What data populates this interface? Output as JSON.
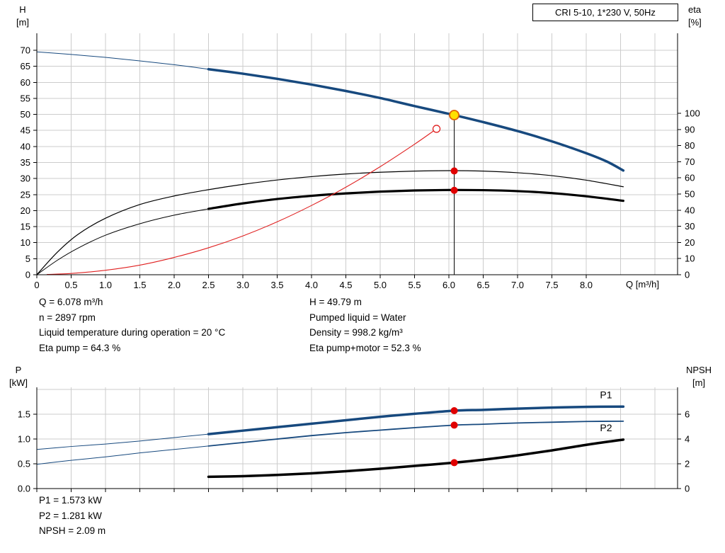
{
  "colors": {
    "grid": "#cccccc",
    "axis": "#000000",
    "curve_blue": "#17497E",
    "curve_black": "#000000",
    "curve_red": "#E02020",
    "marker_red": "#E00000",
    "duty_fill": "#FFE000",
    "duty_stroke": "#E06000"
  },
  "info": {
    "top_left": [
      "Q = 6.078 m³/h",
      "n = 2897 rpm",
      "Liquid temperature during operation = 20 °C",
      "Eta pump = 64.3 %"
    ],
    "top_right": [
      "H = 49.79 m",
      "Pumped liquid = Water",
      "Density = 998.2 kg/m³",
      "Eta pump+motor = 52.3 %"
    ],
    "bottom": [
      "P1 = 1.573 kW",
      "P2 = 1.281 kW",
      "NPSH = 2.09 m"
    ]
  },
  "chart_data": [
    {
      "type": "line",
      "title": "CRI 5-10, 1*230 V, 50Hz",
      "x_axis": {
        "label": "Q [m³/h]",
        "min": 0,
        "max": 9.33,
        "grid_step": 0.5,
        "grid_max": 9.0,
        "tick_values": [
          0,
          0.5,
          1,
          1.5,
          2,
          2.5,
          3,
          3.5,
          4,
          4.5,
          5,
          5.5,
          6,
          6.5,
          7,
          7.5,
          8
        ],
        "tick_labels": [
          "0",
          "0.5",
          "1.0",
          "1.5",
          "2.0",
          "2.5",
          "3.0",
          "3.5",
          "4.0",
          "4.5",
          "5.0",
          "5.5",
          "6.0",
          "6.5",
          "7.0",
          "7.5",
          "8.0"
        ]
      },
      "y_left": {
        "label": "H",
        "unit": "[m]",
        "min": 0,
        "max": 75.3,
        "grid_step": 5,
        "grid_max": 70,
        "tick_values": [
          0,
          5,
          10,
          15,
          20,
          25,
          30,
          35,
          40,
          45,
          50,
          55,
          60,
          65,
          70
        ],
        "tick_labels": [
          "0",
          "5",
          "10",
          "15",
          "20",
          "25",
          "30",
          "35",
          "40",
          "45",
          "50",
          "55",
          "60",
          "65",
          "70"
        ]
      },
      "y_right": {
        "label": "eta",
        "unit": "[%]",
        "min": 0,
        "max": 149.6,
        "tick_values": [
          0,
          10,
          20,
          30,
          40,
          50,
          60,
          70,
          80,
          90,
          100
        ],
        "tick_labels": [
          "0",
          "10",
          "20",
          "30",
          "40",
          "50",
          "60",
          "70",
          "80",
          "90",
          "100"
        ]
      },
      "vline": {
        "x": 6.078,
        "from": 0,
        "to": 48.2,
        "axis": "left"
      },
      "series": [
        {
          "name": "head-curve-thin",
          "axis": "left",
          "color": "#17497E",
          "width": 1,
          "points": [
            [
              0,
              69.5
            ],
            [
              0.5,
              68.7
            ],
            [
              1,
              67.8
            ],
            [
              1.5,
              66.7
            ],
            [
              2,
              65.5
            ],
            [
              2.5,
              64.1
            ]
          ]
        },
        {
          "name": "head-curve",
          "axis": "left",
          "color": "#17497E",
          "width": 3.5,
          "points": [
            [
              2.5,
              64.1
            ],
            [
              3,
              62.7
            ],
            [
              3.5,
              61.1
            ],
            [
              4,
              59.3
            ],
            [
              4.5,
              57.3
            ],
            [
              5,
              55.1
            ],
            [
              5.5,
              52.6
            ],
            [
              6.078,
              49.79
            ],
            [
              6.5,
              47.6
            ],
            [
              7,
              44.8
            ],
            [
              7.5,
              41.6
            ],
            [
              8,
              37.9
            ],
            [
              8.3,
              35.3
            ],
            [
              8.54,
              32.5
            ]
          ]
        },
        {
          "name": "eta-pump-curve",
          "axis": "right",
          "color": "#000000",
          "width": 1.2,
          "points": [
            [
              0,
              0
            ],
            [
              0.3,
              14
            ],
            [
              0.6,
              25
            ],
            [
              1,
              35
            ],
            [
              1.5,
              43.5
            ],
            [
              2,
              48.8
            ],
            [
              2.5,
              52.7
            ],
            [
              3,
              56
            ],
            [
              3.5,
              58.7
            ],
            [
              4,
              60.8
            ],
            [
              4.5,
              62.4
            ],
            [
              5,
              63.5
            ],
            [
              5.5,
              64.2
            ],
            [
              6,
              64.5
            ],
            [
              6.5,
              64.2
            ],
            [
              7,
              63.2
            ],
            [
              7.5,
              61.4
            ],
            [
              8,
              58.6
            ],
            [
              8.54,
              54.5
            ]
          ]
        },
        {
          "name": "eta-pump-motor-curve-thin",
          "axis": "right",
          "color": "#000000",
          "width": 1,
          "points": [
            [
              0,
              0
            ],
            [
              0.3,
              9
            ],
            [
              0.6,
              16.5
            ],
            [
              1,
              24.5
            ],
            [
              1.5,
              31.6
            ],
            [
              2,
              36.9
            ],
            [
              2.5,
              40.8
            ]
          ]
        },
        {
          "name": "eta-pump-motor-curve",
          "axis": "right",
          "color": "#000000",
          "width": 3.2,
          "points": [
            [
              2.5,
              40.8
            ],
            [
              3,
              44.2
            ],
            [
              3.5,
              46.9
            ],
            [
              4,
              48.9
            ],
            [
              4.5,
              50.4
            ],
            [
              5,
              51.5
            ],
            [
              5.5,
              52.2
            ],
            [
              6,
              52.5
            ],
            [
              6.5,
              52.4
            ],
            [
              7,
              51.8
            ],
            [
              7.5,
              50.6
            ],
            [
              8,
              48.6
            ],
            [
              8.54,
              45.8
            ]
          ]
        },
        {
          "name": "system-curve",
          "axis": "left",
          "color": "#E02020",
          "width": 1.1,
          "points": [
            [
              0.15,
              0.1
            ],
            [
              0.5,
              0.4
            ],
            [
              1,
              1.4
            ],
            [
              1.5,
              3
            ],
            [
              2,
              5.4
            ],
            [
              2.5,
              8.4
            ],
            [
              3,
              12.1
            ],
            [
              3.5,
              16.5
            ],
            [
              4,
              21.6
            ],
            [
              4.5,
              27.3
            ],
            [
              5,
              33.7
            ],
            [
              5.5,
              40.7
            ],
            [
              5.82,
              45.5
            ]
          ]
        }
      ],
      "markers": [
        {
          "name": "rated-point-marker",
          "x": 5.82,
          "y": 45.5,
          "axis": "left",
          "r": 5,
          "fill": "#FFFFFF",
          "stroke": "#E02020",
          "stroke_width": 1.3
        },
        {
          "name": "duty-point-marker",
          "x": 6.078,
          "y": 49.79,
          "axis": "left",
          "r": 6.5,
          "fill": "#FFE000",
          "stroke": "#E06000",
          "stroke_width": 1.8
        },
        {
          "name": "eta-pump-point",
          "x": 6.078,
          "y": 64.3,
          "axis": "right",
          "r": 5,
          "fill": "#E00000"
        },
        {
          "name": "eta-pump-motor-point",
          "x": 6.078,
          "y": 52.3,
          "axis": "right",
          "r": 5,
          "fill": "#E00000"
        }
      ],
      "series_labels": []
    },
    {
      "type": "line",
      "title": "",
      "x_axis": {
        "label": "",
        "min": 0,
        "max": 9.33,
        "grid_step": 0.5,
        "grid_max": 9.0,
        "tick_values": [
          0,
          0.5,
          1,
          1.5,
          2,
          2.5,
          3,
          3.5,
          4,
          4.5,
          5,
          5.5,
          6,
          6.5,
          7,
          7.5,
          8
        ],
        "tick_labels": []
      },
      "y_left": {
        "label": "P",
        "unit": "[kW]",
        "min": 0,
        "max": 2.045,
        "grid_step": 0.5,
        "grid_max": 2.0,
        "tick_values": [
          0,
          0.5,
          1,
          1.5
        ],
        "tick_labels": [
          "0.0",
          "0.5",
          "1.0",
          "1.5"
        ]
      },
      "y_right": {
        "label": "NPSH",
        "unit": "[m]",
        "min": 0,
        "max": 8.17,
        "tick_values": [
          0,
          2,
          4,
          6
        ],
        "tick_labels": [
          "0",
          "2",
          "4",
          "6"
        ]
      },
      "series": [
        {
          "name": "p1-curve-thin",
          "axis": "left",
          "color": "#17497E",
          "width": 1,
          "points": [
            [
              0,
              0.79
            ],
            [
              0.5,
              0.85
            ],
            [
              1,
              0.9
            ],
            [
              1.5,
              0.96
            ],
            [
              2,
              1.03
            ],
            [
              2.5,
              1.1
            ]
          ]
        },
        {
          "name": "p1-curve",
          "axis": "left",
          "color": "#17497E",
          "width": 3.5,
          "points": [
            [
              2.5,
              1.1
            ],
            [
              3,
              1.17
            ],
            [
              3.5,
              1.24
            ],
            [
              4,
              1.31
            ],
            [
              4.5,
              1.38
            ],
            [
              5,
              1.45
            ],
            [
              5.5,
              1.51
            ],
            [
              6.078,
              1.573
            ],
            [
              6.5,
              1.59
            ],
            [
              7,
              1.615
            ],
            [
              7.5,
              1.635
            ],
            [
              8,
              1.65
            ],
            [
              8.54,
              1.655
            ]
          ]
        },
        {
          "name": "p2-curve-thin",
          "axis": "left",
          "color": "#17497E",
          "width": 1,
          "points": [
            [
              0,
              0.49
            ],
            [
              0.5,
              0.57
            ],
            [
              1,
              0.64
            ],
            [
              1.5,
              0.72
            ],
            [
              2,
              0.79
            ],
            [
              2.5,
              0.86
            ]
          ]
        },
        {
          "name": "p2-curve",
          "axis": "left",
          "color": "#17497E",
          "width": 1.8,
          "points": [
            [
              2.5,
              0.86
            ],
            [
              3,
              0.93
            ],
            [
              3.5,
              1.0
            ],
            [
              4,
              1.07
            ],
            [
              4.5,
              1.13
            ],
            [
              5,
              1.18
            ],
            [
              5.5,
              1.23
            ],
            [
              6.078,
              1.281
            ],
            [
              6.5,
              1.3
            ],
            [
              7,
              1.325
            ],
            [
              7.5,
              1.34
            ],
            [
              8,
              1.355
            ],
            [
              8.54,
              1.36
            ]
          ]
        },
        {
          "name": "npsh-curve",
          "axis": "right",
          "color": "#000000",
          "width": 3.5,
          "points": [
            [
              2.5,
              0.95
            ],
            [
              3,
              1.0
            ],
            [
              3.5,
              1.1
            ],
            [
              4,
              1.23
            ],
            [
              4.5,
              1.4
            ],
            [
              5,
              1.6
            ],
            [
              5.5,
              1.83
            ],
            [
              6.078,
              2.09
            ],
            [
              6.5,
              2.33
            ],
            [
              7,
              2.68
            ],
            [
              7.5,
              3.08
            ],
            [
              8,
              3.53
            ],
            [
              8.54,
              3.95
            ]
          ]
        }
      ],
      "markers": [
        {
          "name": "p1-point",
          "x": 6.078,
          "y": 1.573,
          "axis": "left",
          "r": 5,
          "fill": "#E00000"
        },
        {
          "name": "p2-point",
          "x": 6.078,
          "y": 1.281,
          "axis": "left",
          "r": 5,
          "fill": "#E00000"
        },
        {
          "name": "npsh-point",
          "x": 6.078,
          "y": 2.09,
          "axis": "right",
          "r": 5,
          "fill": "#E00000"
        }
      ],
      "series_labels": [
        {
          "text": "P1",
          "x": 8.2,
          "y": 1.82,
          "axis": "left",
          "color": "#17497E"
        },
        {
          "text": "P2",
          "x": 8.2,
          "y": 1.16,
          "axis": "left",
          "color": "#17497E"
        }
      ]
    }
  ]
}
